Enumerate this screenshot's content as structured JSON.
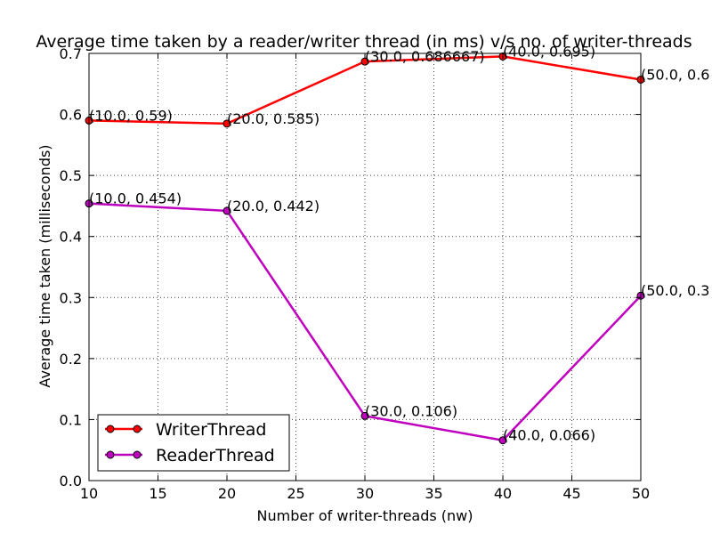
{
  "chart_data": {
    "type": "line",
    "title": "Average time taken by a reader/writer thread (in ms) v/s no. of writer-threads",
    "xlabel": "Number of writer-threads (nw)",
    "ylabel": "Average time taken (milliseconds)",
    "xlim": [
      10,
      50
    ],
    "ylim": [
      0,
      0.7
    ],
    "xticks": [
      10,
      15,
      20,
      25,
      30,
      35,
      40,
      45,
      50
    ],
    "xtick_labels": [
      "10",
      "15",
      "20",
      "25",
      "30",
      "35",
      "40",
      "45",
      "50"
    ],
    "yticks": [
      0,
      0.1,
      0.2,
      0.3,
      0.4,
      0.5,
      0.6,
      0.7
    ],
    "ytick_labels": [
      "0.0",
      "0.1",
      "0.2",
      "0.3",
      "0.4",
      "0.5",
      "0.6",
      "0.7"
    ],
    "grid": true,
    "legend_position": "lower-left",
    "series": [
      {
        "name": "WriterThread",
        "color": "#ff0000",
        "x": [
          10,
          20,
          30,
          40,
          50
        ],
        "y": [
          0.59,
          0.585,
          0.686667,
          0.695,
          0.657
        ],
        "point_labels": [
          "(10.0, 0.59)",
          "(20.0, 0.585)",
          "(30.0, 0.686667)",
          "(40.0, 0.695)",
          "(50.0, 0.6"
        ]
      },
      {
        "name": "ReaderThread",
        "color": "#bf00bf",
        "x": [
          10,
          20,
          30,
          40,
          50
        ],
        "y": [
          0.454,
          0.442,
          0.106,
          0.066,
          0.303
        ],
        "point_labels": [
          "(10.0, 0.454)",
          "(20.0, 0.442)",
          "(30.0, 0.106)",
          "(40.0, 0.066)",
          "(50.0, 0.3"
        ]
      }
    ]
  }
}
